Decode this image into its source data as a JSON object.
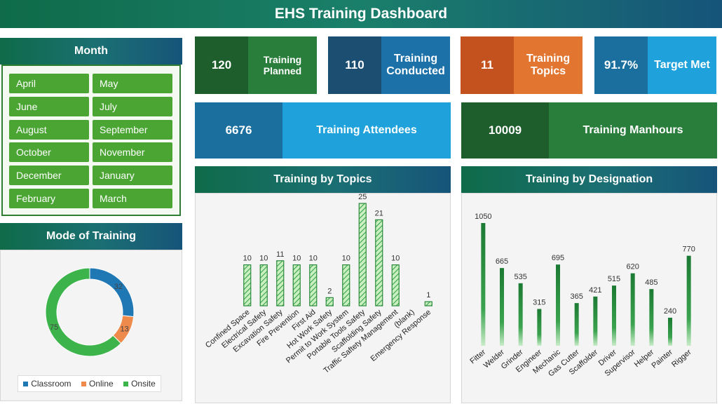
{
  "title": "EHS Training Dashboard",
  "month_filter": {
    "header": "Month",
    "items": [
      "April",
      "May",
      "June",
      "July",
      "August",
      "September",
      "October",
      "November",
      "December",
      "January",
      "February",
      "March"
    ]
  },
  "kpis": {
    "planned": {
      "value": "120",
      "label": "Training Planned"
    },
    "conducted": {
      "value": "110",
      "label": "Training Conducted"
    },
    "topics": {
      "value": "11",
      "label": "Training Topics"
    },
    "target": {
      "value": "91.7%",
      "label": "Target Met"
    },
    "attendees": {
      "value": "6676",
      "label": "Training Attendees"
    },
    "manhours": {
      "value": "10009",
      "label": "Training Manhours"
    }
  },
  "colors": {
    "dark_green": "#1e5e2d",
    "green": "#2a7e3b",
    "navy": "#1b4e71",
    "blue": "#1c71a8",
    "orange_dark": "#c4521e",
    "orange": "#e2752f",
    "sky_dark": "#1a6f9e",
    "sky": "#1fa2dc",
    "classroom": "#1f77b4",
    "online": "#ef8a4d",
    "onsite": "#3cb44b"
  },
  "mode_chart": {
    "header": "Mode of Training",
    "chart_data": {
      "type": "pie",
      "categories": [
        "Classroom",
        "Online",
        "Onsite"
      ],
      "values": [
        32,
        13,
        75
      ],
      "legend": "bottom"
    }
  },
  "topics_chart": {
    "header": "Training by Topics",
    "chart_data": {
      "type": "bar",
      "categories": [
        "Confined Space",
        "Electrical Safety",
        "Excavation Safety",
        "Fire Prevention",
        "First Aid",
        "Hot Work Safety",
        "Permit to Work System",
        "Portable Tools Safety",
        "Scaffolding Safety",
        "Traffic Saftety Management",
        "(blank)",
        "Emergency Response"
      ],
      "values": [
        10,
        10,
        11,
        10,
        10,
        2,
        10,
        25,
        21,
        10,
        null,
        1
      ],
      "ylim": [
        0,
        25
      ]
    }
  },
  "designation_chart": {
    "header": "Training by Designation",
    "chart_data": {
      "type": "bar",
      "categories": [
        "Fitter",
        "Welder",
        "Grinder",
        "Engineer",
        "Mechanic",
        "Gas Cutter",
        "Scaffolder",
        "Driver",
        "Supervisor",
        "Helper",
        "Painter",
        "Rigger"
      ],
      "values": [
        1050,
        665,
        535,
        315,
        695,
        365,
        421,
        515,
        620,
        485,
        240,
        770
      ],
      "ylim": [
        0,
        1050
      ]
    }
  }
}
